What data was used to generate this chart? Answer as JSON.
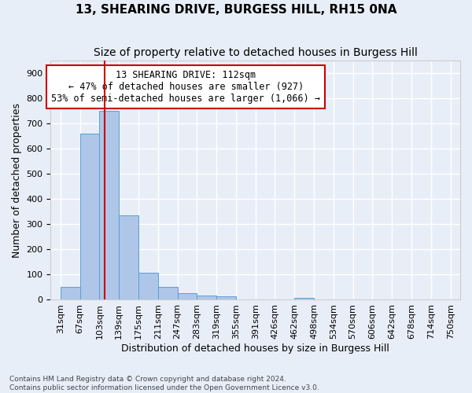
{
  "title": "13, SHEARING DRIVE, BURGESS HILL, RH15 0NA",
  "subtitle": "Size of property relative to detached houses in Burgess Hill",
  "xlabel": "Distribution of detached houses by size in Burgess Hill",
  "ylabel": "Number of detached properties",
  "footnote1": "Contains HM Land Registry data © Crown copyright and database right 2024.",
  "footnote2": "Contains public sector information licensed under the Open Government Licence v3.0.",
  "bin_labels": [
    "31sqm",
    "67sqm",
    "103sqm",
    "139sqm",
    "175sqm",
    "211sqm",
    "247sqm",
    "283sqm",
    "319sqm",
    "355sqm",
    "391sqm",
    "426sqm",
    "462sqm",
    "498sqm",
    "534sqm",
    "570sqm",
    "606sqm",
    "642sqm",
    "678sqm",
    "714sqm",
    "750sqm"
  ],
  "bar_heights": [
    50,
    660,
    750,
    335,
    108,
    50,
    25,
    18,
    13,
    0,
    0,
    0,
    8,
    0,
    0,
    0,
    0,
    0,
    0,
    0
  ],
  "bar_color": "#aec6e8",
  "bar_edge_color": "#5a9fd4",
  "property_sqm": 112,
  "vline_color": "#cc0000",
  "annotation_line1": "13 SHEARING DRIVE: 112sqm",
  "annotation_line2": "← 47% of detached houses are smaller (927)",
  "annotation_line3": "53% of semi-detached houses are larger (1,066) →",
  "annotation_box_color": "#ffffff",
  "annotation_box_edge": "#cc0000",
  "ylim": [
    0,
    950
  ],
  "yticks": [
    0,
    100,
    200,
    300,
    400,
    500,
    600,
    700,
    800,
    900
  ],
  "background_color": "#e8eef8",
  "grid_color": "#ffffff",
  "title_fontsize": 11,
  "subtitle_fontsize": 10,
  "axis_label_fontsize": 9,
  "tick_fontsize": 8,
  "annotation_fontsize": 8.5
}
